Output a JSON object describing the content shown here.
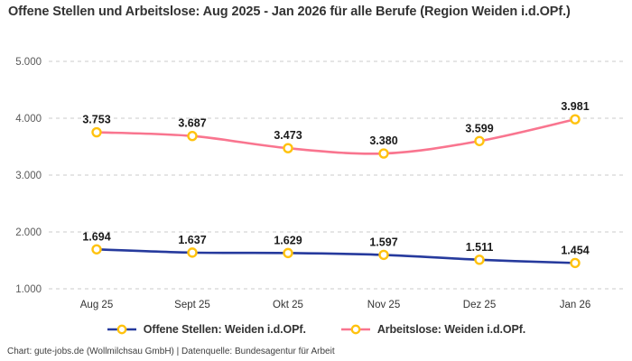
{
  "header": {
    "title": "Offene Stellen und Arbeitslose: Aug 2025 - Jan 2026 für alle Berufe (Region Weiden i.d.OPf.)"
  },
  "footer": {
    "attribution": "Chart: gute-jobs.de (Wollmilchsau GmbH) | Datenquelle: Bundesagentur für Arbeit"
  },
  "colors": {
    "open_positions_line": "#263A9D",
    "unemployed_line": "#F9758F",
    "marker_ring": "#FFC20E",
    "marker_fill": "#FFFFFF",
    "gridline": "#CBCBCB",
    "title_text": "#333333",
    "ytick_text": "#5A5A5A",
    "xtick_text": "#333333",
    "data_label_text": "#1A1A1A"
  },
  "chart_data": {
    "type": "line",
    "title": "Offene Stellen und Arbeitslose: Aug 2025 - Jan 2026 für alle Berufe (Region Weiden i.d.OPf.)",
    "categories": [
      "Aug 25",
      "Sept 25",
      "Okt 25",
      "Nov 25",
      "Dez 25",
      "Jan 26"
    ],
    "series": [
      {
        "name": "Offene Stellen: Weiden i.d.OPf.",
        "values": [
          1694,
          1637,
          1629,
          1597,
          1511,
          1454
        ],
        "value_labels": [
          "1.694",
          "1.637",
          "1.629",
          "1.597",
          "1.511",
          "1.454"
        ],
        "color_key": "open_positions_line"
      },
      {
        "name": "Arbeitslose: Weiden i.d.OPf.",
        "values": [
          3753,
          3687,
          3473,
          3380,
          3599,
          3981
        ],
        "value_labels": [
          "3.753",
          "3.687",
          "3.473",
          "3.380",
          "3.599",
          "3.981"
        ],
        "color_key": "unemployed_line"
      }
    ],
    "xlabel": "",
    "ylabel": "",
    "ylim": [
      1000,
      5000
    ],
    "ytick_step": 1000,
    "ytick_labels": [
      "1.000",
      "2.000",
      "3.000",
      "4.000",
      "5.000"
    ],
    "grid": "horizontal-dashed",
    "legend_position": "bottom",
    "data_labels": true,
    "number_format": "de-thousands-dot"
  },
  "legend": {
    "items": [
      {
        "label": "Offene Stellen: Weiden i.d.OPf.",
        "color_key": "open_positions_line"
      },
      {
        "label": "Arbeitslose: Weiden i.d.OPf.",
        "color_key": "unemployed_line"
      }
    ]
  }
}
